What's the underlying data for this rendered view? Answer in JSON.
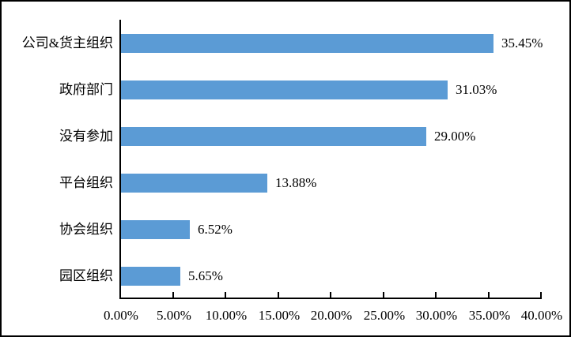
{
  "chart_data": {
    "type": "bar",
    "orientation": "horizontal",
    "title": "",
    "xlabel": "",
    "ylabel": "",
    "categories": [
      "公司&货主组织",
      "政府部门",
      "没有参加",
      "平台组织",
      "协会组织",
      "园区组织"
    ],
    "values": [
      35.45,
      31.03,
      29.0,
      13.88,
      6.52,
      5.65
    ],
    "data_labels": [
      "35.45%",
      "31.03%",
      "29.00%",
      "13.88%",
      "6.52%",
      "5.65%"
    ],
    "x_tick_labels": [
      "0.00%",
      "5.00%",
      "10.00%",
      "15.00%",
      "20.00%",
      "25.00%",
      "30.00%",
      "35.00%",
      "40.00%"
    ],
    "xlim": [
      0,
      40
    ],
    "grid": false,
    "legend": false,
    "bar_color": "#5B9BD5",
    "axis_color": "#000000",
    "text_color": "#000000"
  }
}
